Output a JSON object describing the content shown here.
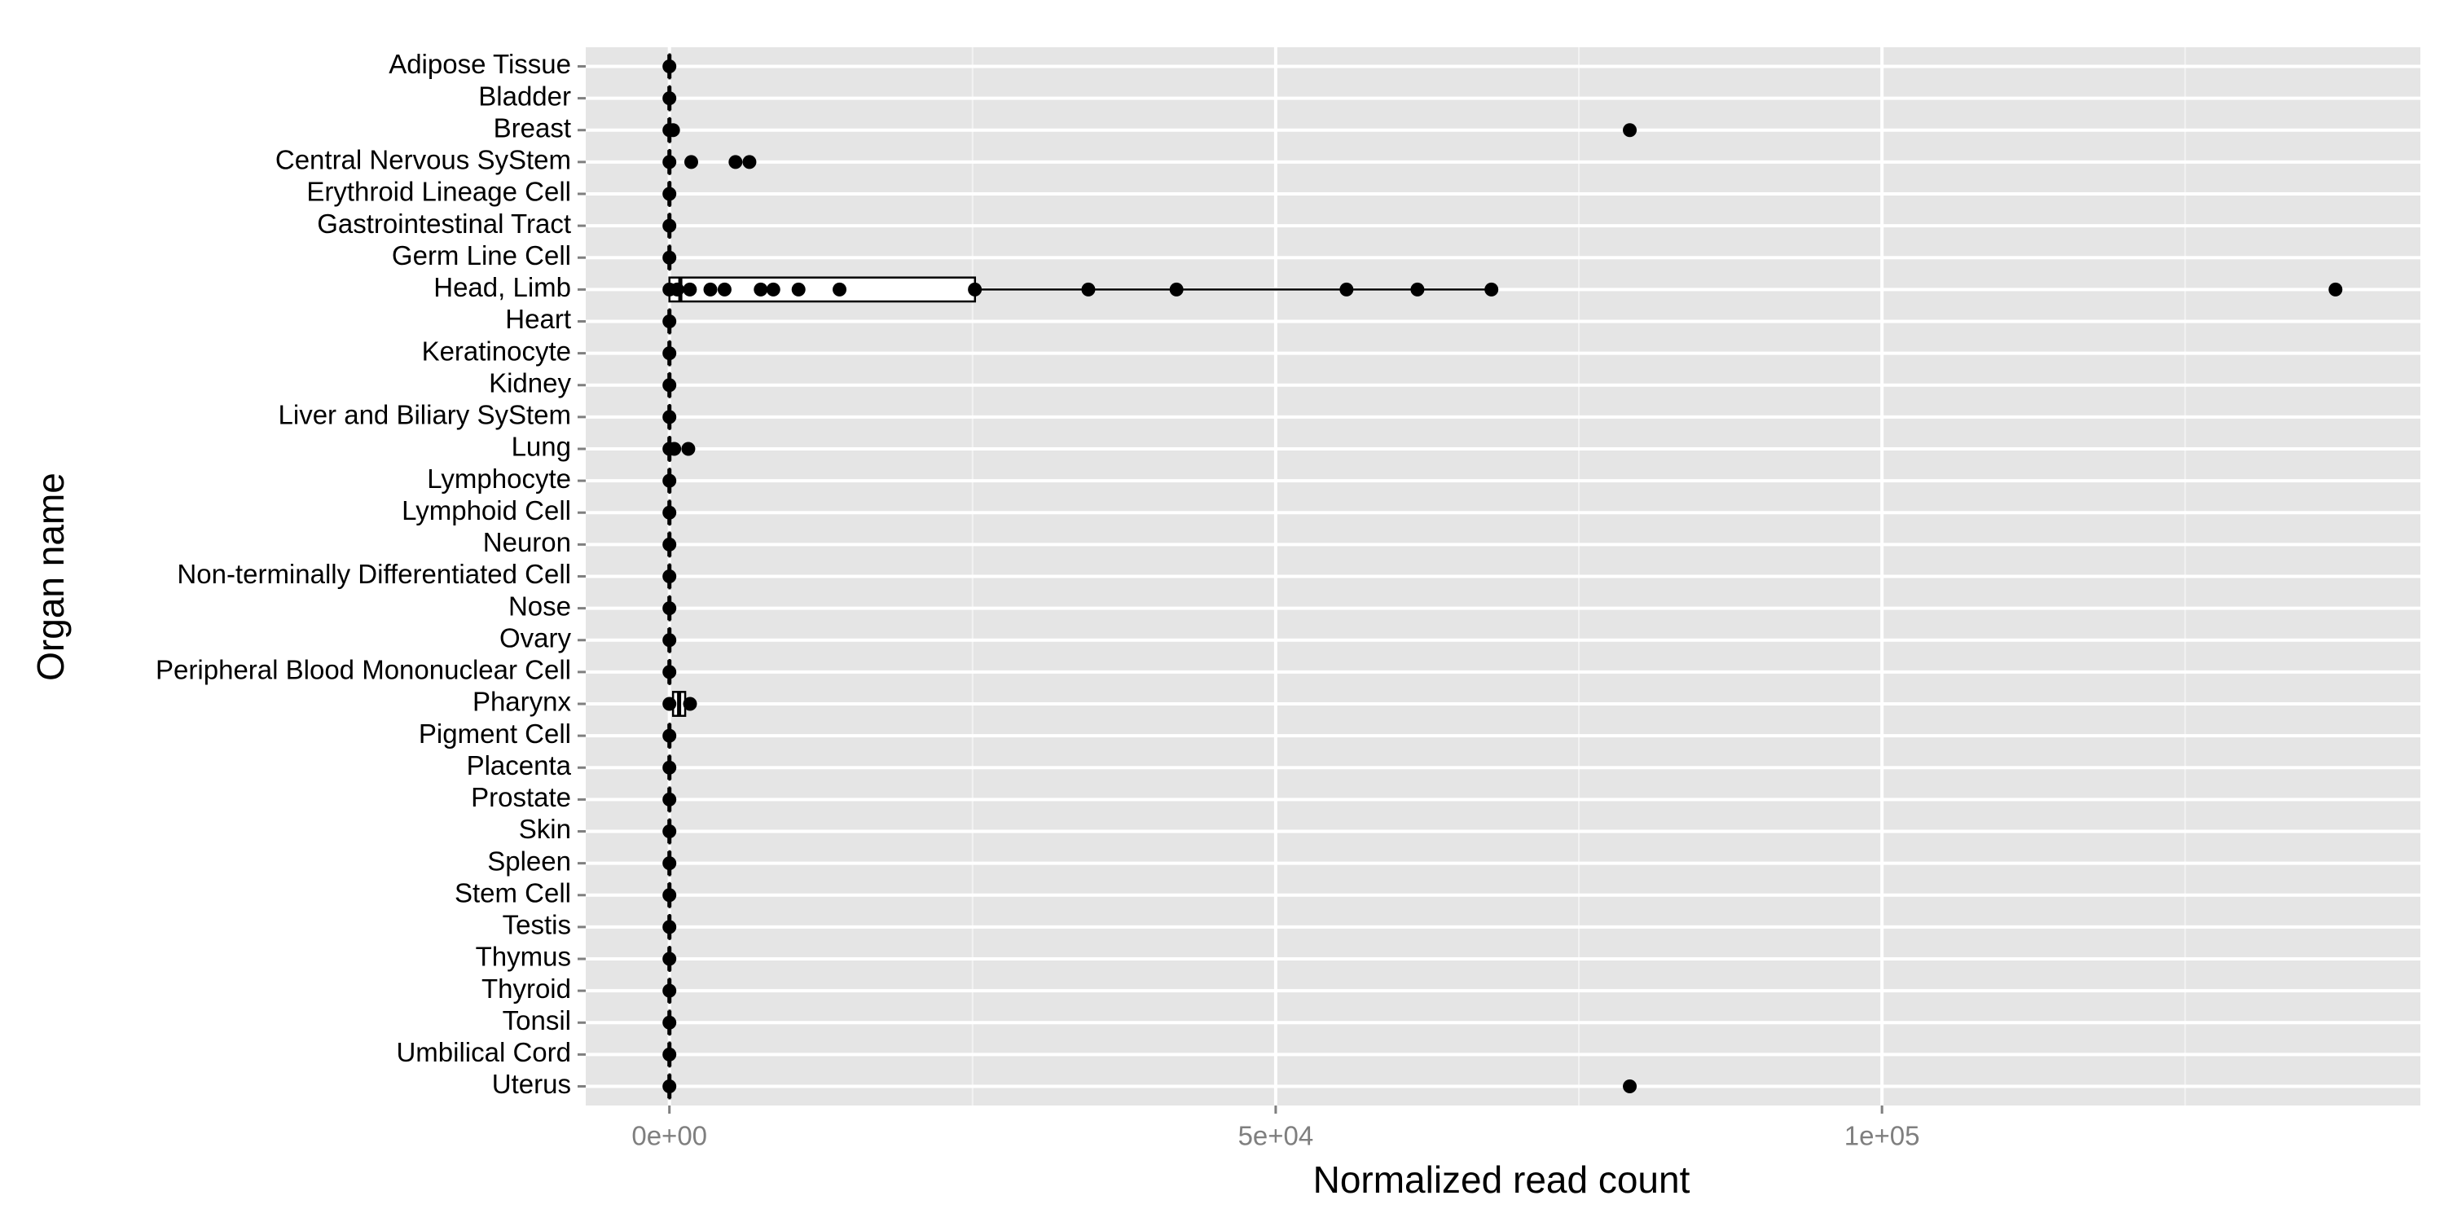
{
  "chart_data": {
    "type": "boxplot",
    "xlabel": "Normalized read count",
    "ylabel": "Organ name",
    "categories": [
      "Adipose Tissue",
      "Bladder",
      "Breast",
      "Central Nervous SyStem",
      "Erythroid Lineage Cell",
      "Gastrointestinal Tract",
      "Germ Line Cell",
      "Head, Limb",
      "Heart",
      "Keratinocyte",
      "Kidney",
      "Liver and Biliary SyStem",
      "Lung",
      "Lymphocyte",
      "Lymphoid Cell",
      "Neuron",
      "Non-terminally Differentiated Cell",
      "Nose",
      "Ovary",
      "Peripheral Blood Mononuclear Cell",
      "Pharynx",
      "Pigment Cell",
      "Placenta",
      "Prostate",
      "Skin",
      "Spleen",
      "Stem Cell",
      "Testis",
      "Thymus",
      "Thyroid",
      "Tonsil",
      "Umbilical Cord",
      "Uterus"
    ],
    "boxes": [
      [
        0,
        0,
        0,
        0,
        0
      ],
      [
        0,
        0,
        0,
        0,
        0
      ],
      [
        0,
        0,
        0,
        0,
        300
      ],
      [
        0,
        0,
        0,
        0,
        0
      ],
      [
        0,
        0,
        0,
        0,
        0
      ],
      [
        0,
        0,
        0,
        0,
        0
      ],
      [
        0,
        0,
        0,
        0,
        0
      ],
      [
        0,
        0,
        900,
        25200,
        67800
      ],
      [
        0,
        0,
        0,
        0,
        0
      ],
      [
        0,
        0,
        0,
        0,
        0
      ],
      [
        0,
        0,
        0,
        0,
        0
      ],
      [
        0,
        0,
        0,
        0,
        0
      ],
      [
        0,
        0,
        0,
        0,
        400
      ],
      [
        0,
        0,
        0,
        0,
        0
      ],
      [
        0,
        0,
        0,
        0,
        0
      ],
      [
        0,
        0,
        0,
        0,
        0
      ],
      [
        0,
        0,
        0,
        0,
        0
      ],
      [
        0,
        0,
        0,
        0,
        0
      ],
      [
        0,
        0,
        0,
        0,
        0
      ],
      [
        0,
        0,
        0,
        0,
        0
      ],
      [
        0,
        300,
        800,
        1300,
        1700
      ],
      [
        0,
        0,
        0,
        0,
        0
      ],
      [
        0,
        0,
        0,
        0,
        0
      ],
      [
        0,
        0,
        0,
        0,
        0
      ],
      [
        0,
        0,
        0,
        0,
        0
      ],
      [
        0,
        0,
        0,
        0,
        0
      ],
      [
        0,
        0,
        0,
        0,
        0
      ],
      [
        0,
        0,
        0,
        0,
        0
      ],
      [
        0,
        0,
        0,
        0,
        0
      ],
      [
        0,
        0,
        0,
        0,
        0
      ],
      [
        0,
        0,
        0,
        0,
        0
      ],
      [
        0,
        0,
        0,
        0,
        0
      ],
      [
        0,
        0,
        0,
        0,
        0
      ]
    ],
    "points": [
      [
        0
      ],
      [
        0
      ],
      [
        0,
        300,
        79200
      ],
      [
        0,
        1800,
        5450,
        6600
      ],
      [
        0
      ],
      [
        0
      ],
      [
        0
      ],
      [
        0,
        650,
        1690,
        3380,
        4550,
        7530,
        8570,
        10650,
        14030,
        25190,
        34550,
        41820,
        55840,
        61690,
        67790,
        137400
      ],
      [
        0
      ],
      [
        0
      ],
      [
        0
      ],
      [
        0
      ],
      [
        0,
        400,
        1560
      ],
      [
        0
      ],
      [
        0
      ],
      [
        0
      ],
      [
        0
      ],
      [
        0
      ],
      [
        0
      ],
      [
        0
      ],
      [
        0,
        1700
      ],
      [
        0
      ],
      [
        0
      ],
      [
        0
      ],
      [
        0
      ],
      [
        0
      ],
      [
        0
      ],
      [
        0
      ],
      [
        0
      ],
      [
        0
      ],
      [
        0
      ],
      [
        0
      ],
      [
        0,
        79200
      ]
    ],
    "xlim": [
      -6900,
      144400
    ],
    "xticks": [
      {
        "value": 0,
        "label": "0e+00"
      },
      {
        "value": 50000,
        "label": "5e+04"
      },
      {
        "value": 100000,
        "label": "1e+05"
      }
    ],
    "minor_xticks": [
      25000,
      75000,
      125000
    ],
    "grid": true,
    "color": "#000000",
    "box_fill": "#ffffff",
    "background": "#e5e5e5"
  }
}
